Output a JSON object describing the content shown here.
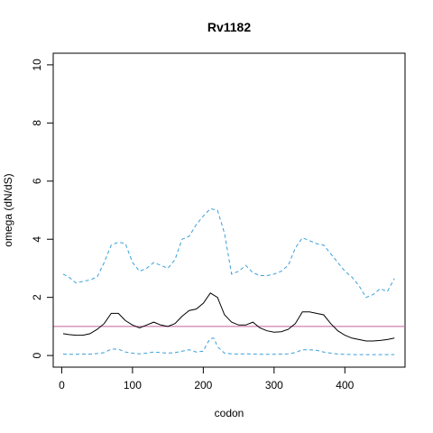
{
  "chart_data": {
    "type": "line",
    "title": "Rv1182",
    "xlabel": "codon",
    "ylabel": "omega (dN/dS)",
    "xlim": [
      -12,
      485
    ],
    "ylim": [
      -0.4,
      10.4
    ],
    "x_ticks": [
      0,
      100,
      200,
      300,
      400
    ],
    "y_ticks": [
      0,
      2,
      4,
      6,
      8,
      10
    ],
    "x_tick_labels": [
      "0",
      "100",
      "200",
      "300",
      "400"
    ],
    "y_tick_labels": [
      "0",
      "2",
      "4",
      "6",
      "8",
      "10"
    ],
    "reference_line": {
      "y": 1,
      "color": "#c0609a"
    },
    "grid": false,
    "series": [
      {
        "style": "dashed",
        "color": "#3aa0d8",
        "x": [
          2,
          10,
          20,
          30,
          40,
          50,
          60,
          70,
          80,
          90,
          100,
          110,
          120,
          130,
          140,
          150,
          160,
          170,
          180,
          190,
          200,
          210,
          220,
          230,
          240,
          250,
          260,
          270,
          280,
          290,
          300,
          310,
          320,
          330,
          340,
          350,
          360,
          370,
          380,
          390,
          400,
          410,
          420,
          430,
          440,
          450,
          460,
          470
        ],
        "y": [
          2.8,
          2.7,
          2.5,
          2.55,
          2.6,
          2.7,
          3.2,
          3.8,
          3.9,
          3.85,
          3.2,
          2.9,
          3.0,
          3.2,
          3.1,
          3.0,
          3.3,
          4.0,
          4.1,
          4.5,
          4.8,
          5.05,
          5.0,
          4.2,
          2.8,
          2.9,
          3.1,
          2.85,
          2.75,
          2.75,
          2.8,
          2.9,
          3.1,
          3.7,
          4.05,
          3.95,
          3.85,
          3.8,
          3.5,
          3.2,
          2.9,
          2.7,
          2.4,
          2.0,
          2.1,
          2.3,
          2.2,
          2.65
        ]
      },
      {
        "style": "solid",
        "color": "#000000",
        "x": [
          2,
          10,
          20,
          30,
          40,
          50,
          60,
          70,
          80,
          90,
          100,
          110,
          120,
          130,
          140,
          150,
          160,
          170,
          180,
          190,
          200,
          210,
          220,
          230,
          240,
          250,
          260,
          270,
          280,
          290,
          300,
          310,
          320,
          330,
          340,
          350,
          360,
          370,
          380,
          390,
          400,
          410,
          420,
          430,
          440,
          450,
          460,
          470
        ],
        "y": [
          0.75,
          0.72,
          0.7,
          0.7,
          0.75,
          0.9,
          1.1,
          1.45,
          1.45,
          1.2,
          1.05,
          0.95,
          1.05,
          1.15,
          1.05,
          1.0,
          1.1,
          1.35,
          1.55,
          1.6,
          1.8,
          2.15,
          2.0,
          1.4,
          1.15,
          1.05,
          1.05,
          1.15,
          0.95,
          0.85,
          0.8,
          0.82,
          0.9,
          1.1,
          1.5,
          1.5,
          1.45,
          1.4,
          1.1,
          0.85,
          0.7,
          0.6,
          0.55,
          0.5,
          0.5,
          0.52,
          0.55,
          0.6
        ]
      },
      {
        "style": "dashed",
        "color": "#3aa0d8",
        "x": [
          2,
          10,
          20,
          30,
          40,
          50,
          60,
          70,
          80,
          90,
          100,
          110,
          120,
          130,
          140,
          150,
          160,
          170,
          180,
          190,
          200,
          205,
          210,
          215,
          220,
          230,
          240,
          250,
          260,
          270,
          280,
          290,
          300,
          310,
          320,
          330,
          340,
          350,
          360,
          370,
          380,
          390,
          400,
          410,
          420,
          430,
          440,
          450,
          460,
          470
        ],
        "y": [
          0.05,
          0.04,
          0.04,
          0.05,
          0.05,
          0.07,
          0.1,
          0.22,
          0.22,
          0.12,
          0.08,
          0.06,
          0.08,
          0.12,
          0.1,
          0.08,
          0.1,
          0.15,
          0.2,
          0.12,
          0.15,
          0.4,
          0.58,
          0.6,
          0.3,
          0.08,
          0.06,
          0.05,
          0.06,
          0.05,
          0.04,
          0.04,
          0.04,
          0.05,
          0.06,
          0.1,
          0.2,
          0.2,
          0.18,
          0.12,
          0.08,
          0.05,
          0.04,
          0.03,
          0.03,
          0.03,
          0.03,
          0.03,
          0.03,
          0.03
        ]
      }
    ]
  }
}
